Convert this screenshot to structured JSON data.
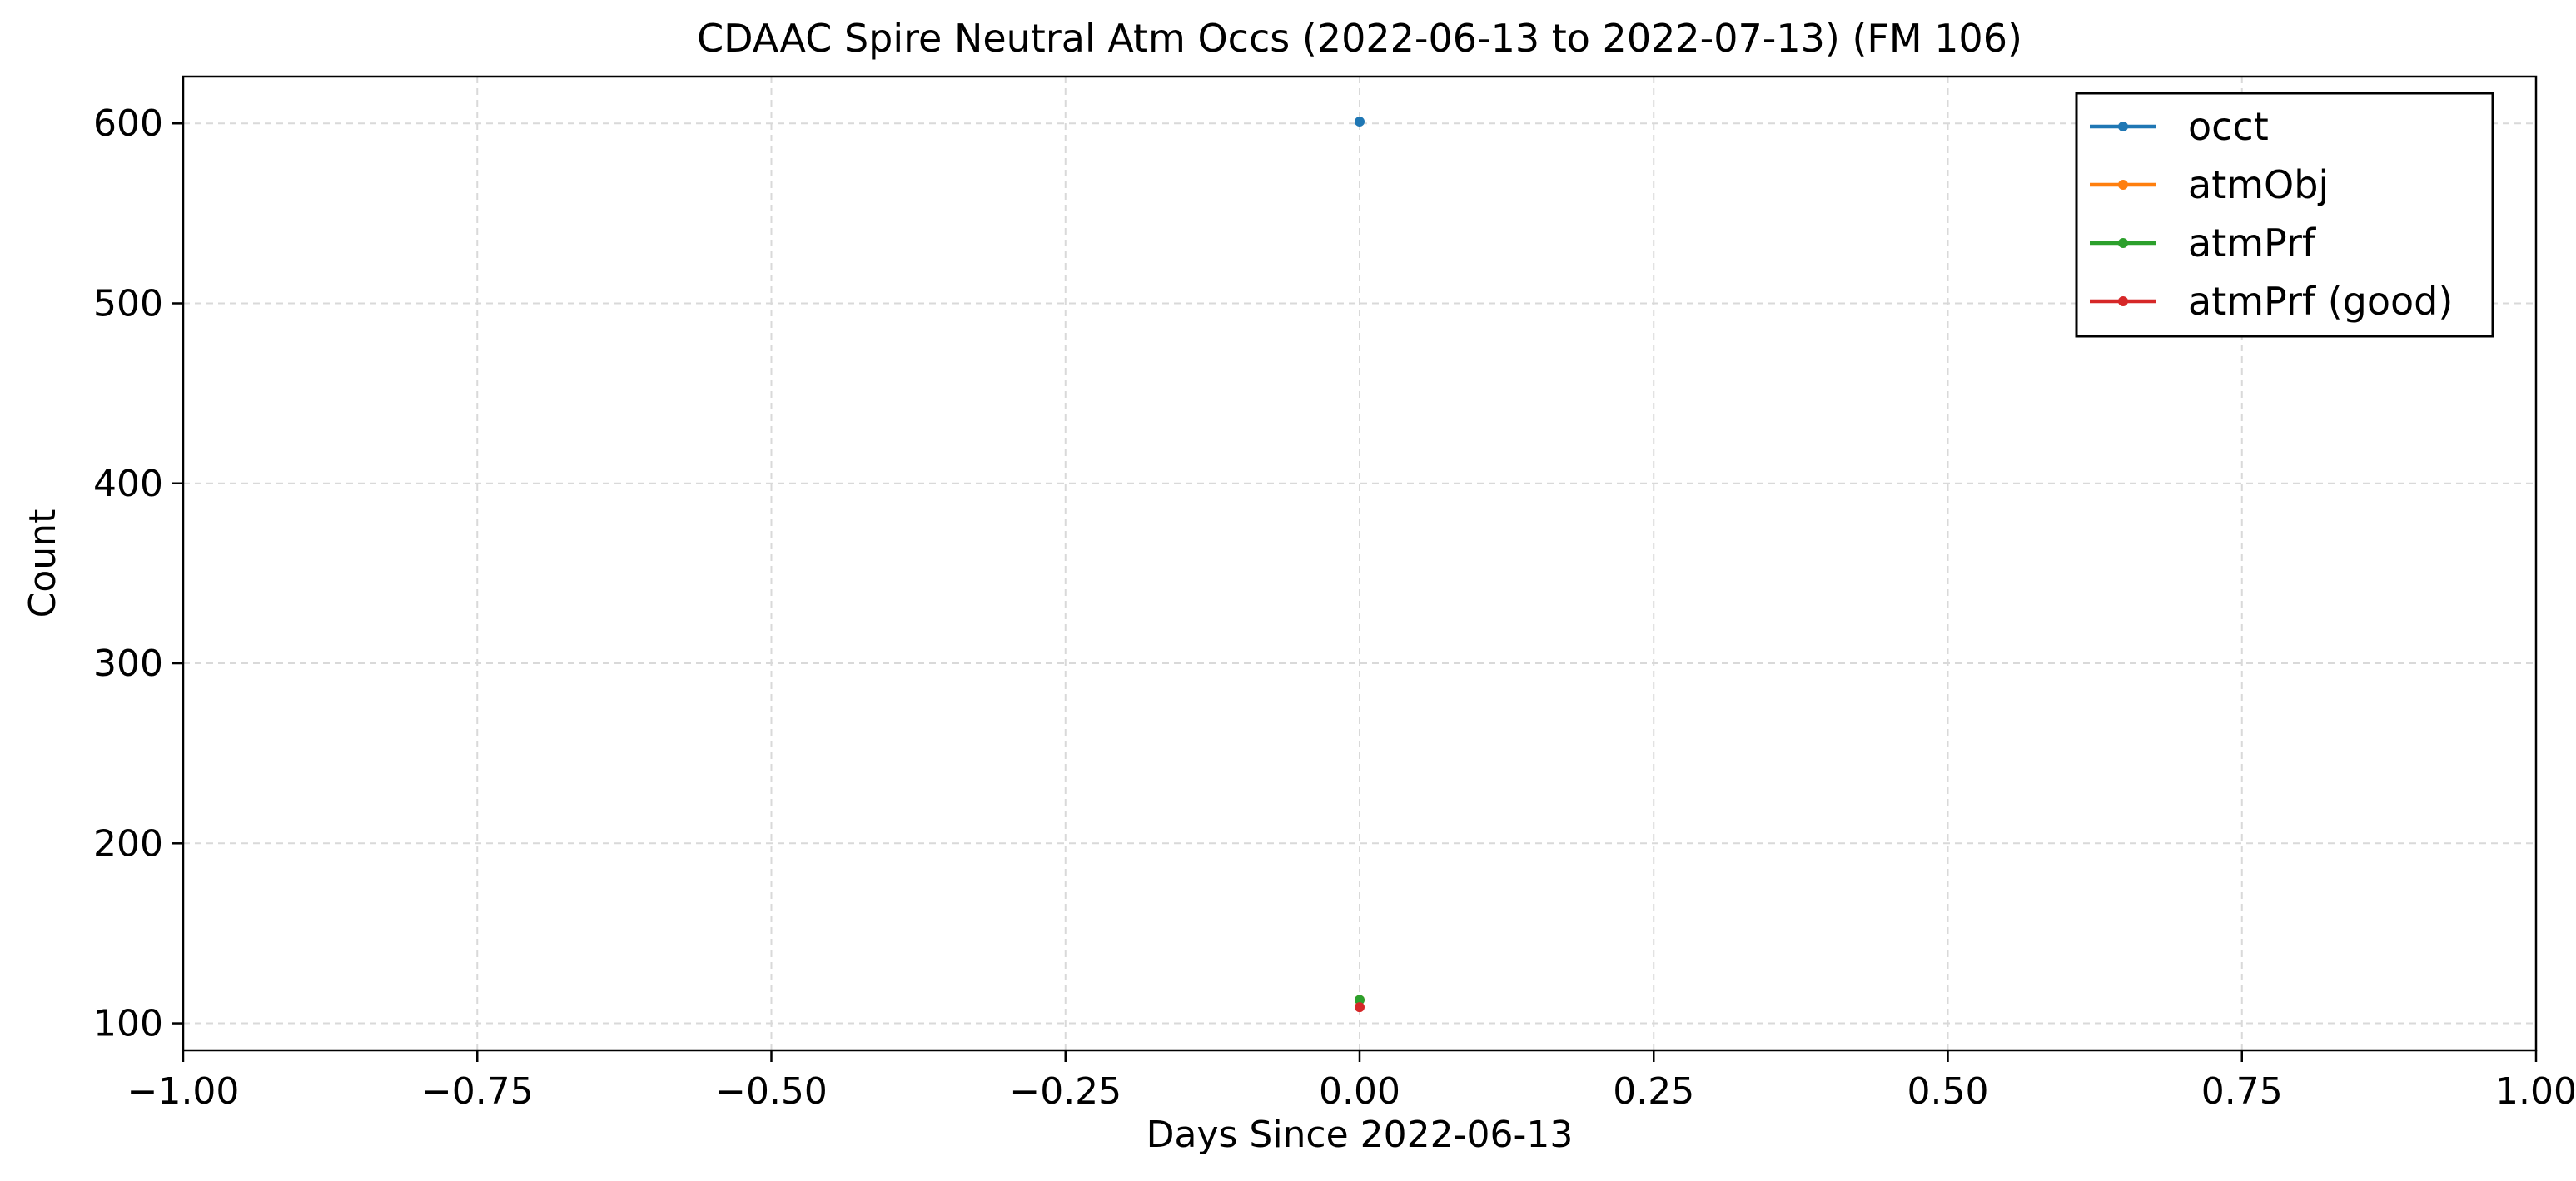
{
  "chart_data": {
    "type": "line",
    "title": "CDAAC Spire Neutral Atm Occs (2022-06-13 to 2022-07-13) (FM 106)",
    "xlabel": "Days Since 2022-06-13",
    "ylabel": "Count",
    "xlim": [
      -1.0,
      1.0
    ],
    "ylim": [
      85,
      626
    ],
    "xticks": [
      -1.0,
      -0.75,
      -0.5,
      -0.25,
      0.0,
      0.25,
      0.5,
      0.75,
      1.0
    ],
    "xtick_labels": [
      "−1.00",
      "−0.75",
      "−0.50",
      "−0.25",
      "0.00",
      "0.25",
      "0.50",
      "0.75",
      "1.00"
    ],
    "yticks": [
      100,
      200,
      300,
      400,
      500,
      600
    ],
    "ytick_labels": [
      "100",
      "200",
      "300",
      "400",
      "500",
      "600"
    ],
    "grid": true,
    "legend_position": "top-right",
    "series": [
      {
        "name": "occt",
        "color": "#1f77b4",
        "x": [
          0.0
        ],
        "y": [
          601
        ]
      },
      {
        "name": "atmObj",
        "color": "#ff7f0e",
        "x": [
          0.0
        ],
        "y": [
          113
        ]
      },
      {
        "name": "atmPrf",
        "color": "#2ca02c",
        "x": [
          0.0
        ],
        "y": [
          113
        ]
      },
      {
        "name": "atmPrf (good)",
        "color": "#d62728",
        "x": [
          0.0
        ],
        "y": [
          109
        ]
      }
    ]
  }
}
